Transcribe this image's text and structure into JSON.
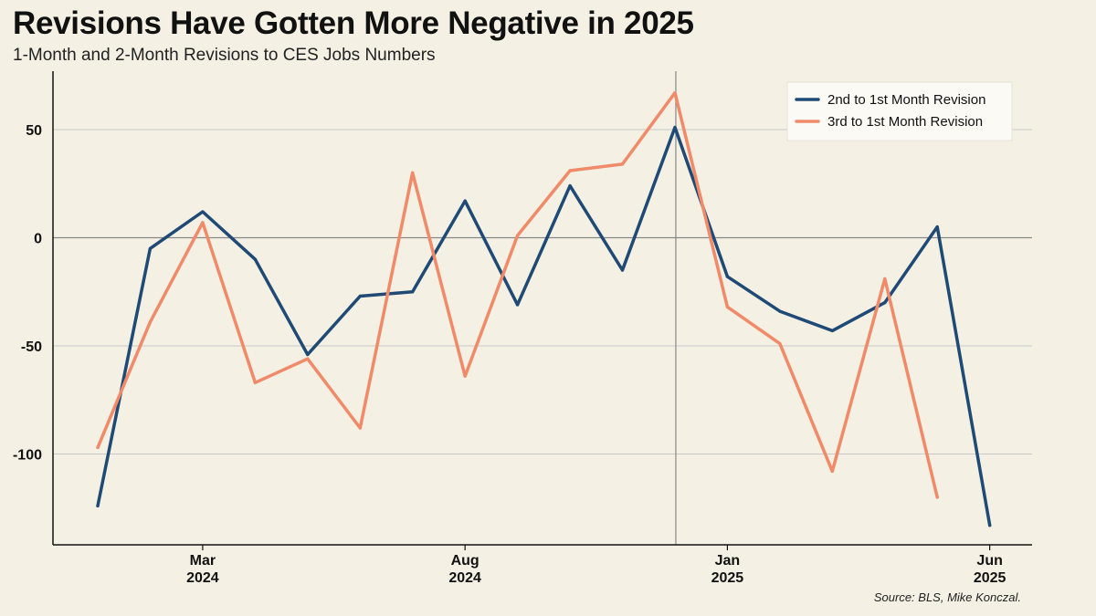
{
  "title": "Revisions Have Gotten More Negative in 2025",
  "subtitle": "1-Month and 2-Month Revisions to CES Jobs Numbers",
  "source": "Source: BLS, Mike Konczal.",
  "colors": {
    "background": "#f4f0e4",
    "series_1": "#1f4a75",
    "series_2": "#f08a68",
    "grid": "#c8c8c8",
    "zero_line": "#888888"
  },
  "chart_data": {
    "type": "line",
    "x": [
      "2024-01",
      "2024-02",
      "2024-03",
      "2024-04",
      "2024-05",
      "2024-06",
      "2024-07",
      "2024-08",
      "2024-09",
      "2024-10",
      "2024-11",
      "2024-12",
      "2025-01",
      "2025-02",
      "2025-03",
      "2025-04",
      "2025-05",
      "2025-06"
    ],
    "series": [
      {
        "name": "2nd to 1st Month Revision",
        "color": "#1f4a75",
        "values": [
          -124,
          -5,
          12,
          -10,
          -54,
          -27,
          -25,
          17,
          -31,
          24,
          -15,
          51,
          -18,
          -34,
          -43,
          -30,
          5,
          -133
        ]
      },
      {
        "name": "3rd to 1st Month Revision",
        "color": "#f08a68",
        "values": [
          -97,
          -39,
          7,
          -67,
          -56,
          -88,
          30,
          -64,
          1,
          31,
          34,
          67,
          -32,
          -49,
          -108,
          -19,
          -120,
          null
        ]
      }
    ],
    "xlabel": "",
    "ylabel": "",
    "ylim": [
      -142,
      77
    ],
    "yticks": [
      50,
      0,
      -50,
      -100
    ],
    "ytick_labels": [
      "50",
      "0",
      "-50",
      "-100"
    ],
    "xticks": [
      {
        "month": "2024-03",
        "line1": "Mar",
        "line2": "2024"
      },
      {
        "month": "2024-08",
        "line1": "Aug",
        "line2": "2024"
      },
      {
        "month": "2025-01",
        "line1": "Jan",
        "line2": "2025"
      },
      {
        "month": "2025-06",
        "line1": "Jun",
        "line2": "2025"
      }
    ],
    "vertical_marker": "2024-12",
    "grid": true,
    "legend_position": "top-right"
  }
}
